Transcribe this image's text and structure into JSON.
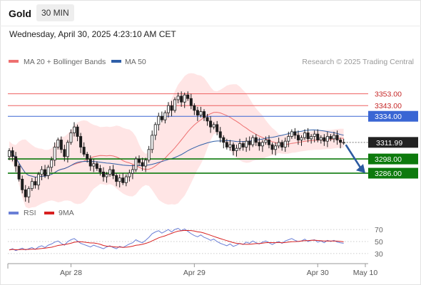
{
  "header": {
    "instrument": "Gold",
    "interval": "30 MIN",
    "datetime": "Wednesday, April 30, 2025 4:23:10 AM CET"
  },
  "colors": {
    "ma20": "#ee7070",
    "ma50": "#2f5fa8",
    "band_fill": "#ffdcdc",
    "candle": "#1c1c1c",
    "resistance": "#ee6060",
    "pivot": "#3a66d4",
    "support": "#0d7a0d",
    "current": "#222222",
    "arrow": "#2c5aa0",
    "rsi": "#6a7fd6",
    "rsi_ma": "#d82020"
  },
  "chart_data": [
    {
      "type": "candlestick",
      "legend": [
        {
          "name": "MA 20 + Bollinger Bands",
          "color": "#ee7070"
        },
        {
          "name": "MA 50",
          "color": "#2f5fa8"
        }
      ],
      "legend_placement": "top-left",
      "source": "Research © 2025 Trading Central",
      "x_ticks": [
        "Apr 28",
        "Apr 29",
        "Apr 30",
        "May 10"
      ],
      "ylim": [
        3262,
        3372
      ],
      "price_start": 3300,
      "closes": [
        3305,
        3300,
        3292,
        3281,
        3272,
        3266,
        3273,
        3279,
        3276,
        3285,
        3289,
        3284,
        3291,
        3297,
        3308,
        3314,
        3306,
        3300,
        3312,
        3320,
        3325,
        3317,
        3308,
        3302,
        3298,
        3292,
        3294,
        3290,
        3287,
        3283,
        3285,
        3289,
        3284,
        3279,
        3282,
        3278,
        3283,
        3286,
        3289,
        3298,
        3295,
        3292,
        3297,
        3306,
        3318,
        3327,
        3334,
        3331,
        3337,
        3343,
        3339,
        3348,
        3351,
        3346,
        3352,
        3349,
        3343,
        3339,
        3335,
        3338,
        3333,
        3330,
        3325,
        3327,
        3321,
        3316,
        3312,
        3308,
        3310,
        3305,
        3307,
        3311,
        3308,
        3313,
        3310,
        3316,
        3312,
        3309,
        3312,
        3314,
        3310,
        3306,
        3309,
        3312,
        3308,
        3313,
        3317,
        3321,
        3318,
        3314,
        3316,
        3320,
        3315,
        3317,
        3319,
        3314,
        3316,
        3313,
        3317,
        3315,
        3318,
        3314,
        3312,
        3312
      ],
      "levels": [
        {
          "kind": "resistance",
          "price": 3353.0,
          "label": "3353.00"
        },
        {
          "kind": "resistance",
          "price": 3343.0,
          "label": "3343.00"
        },
        {
          "kind": "pivot",
          "price": 3334.0,
          "label": "3334.00"
        },
        {
          "kind": "support",
          "price": 3298.0,
          "label": "3298.00"
        },
        {
          "kind": "support",
          "price": 3286.0,
          "label": "3286.00"
        }
      ],
      "current_price": {
        "price": 3311.99,
        "label": "3311.99"
      },
      "forecast_arrow": {
        "from_price": 3310,
        "to_price": 3286,
        "direction": "down"
      }
    },
    {
      "type": "line",
      "legend": [
        {
          "name": "RSI",
          "color": "#6a7fd6"
        },
        {
          "name": "9MA",
          "color": "#d82020"
        }
      ],
      "ylim": [
        18,
        82
      ],
      "y_ticks": [
        70,
        50,
        30
      ],
      "rsi": [
        36,
        38,
        35,
        37,
        39,
        36,
        38,
        40,
        37,
        41,
        43,
        40,
        44,
        46,
        49,
        51,
        47,
        44,
        50,
        53,
        55,
        51,
        47,
        45,
        43,
        41,
        44,
        42,
        40,
        38,
        41,
        43,
        40,
        38,
        42,
        40,
        43,
        46,
        48,
        53,
        50,
        48,
        52,
        57,
        63,
        66,
        68,
        64,
        67,
        70,
        66,
        70,
        72,
        68,
        71,
        67,
        63,
        60,
        58,
        61,
        57,
        55,
        52,
        54,
        50,
        47,
        45,
        43,
        46,
        42,
        44,
        47,
        45,
        49,
        47,
        51,
        48,
        46,
        49,
        51,
        48,
        45,
        48,
        50,
        47,
        51,
        53,
        55,
        52,
        50,
        51,
        54,
        50,
        52,
        53,
        49,
        51,
        48,
        52,
        50,
        52,
        49,
        48,
        47
      ]
    }
  ]
}
